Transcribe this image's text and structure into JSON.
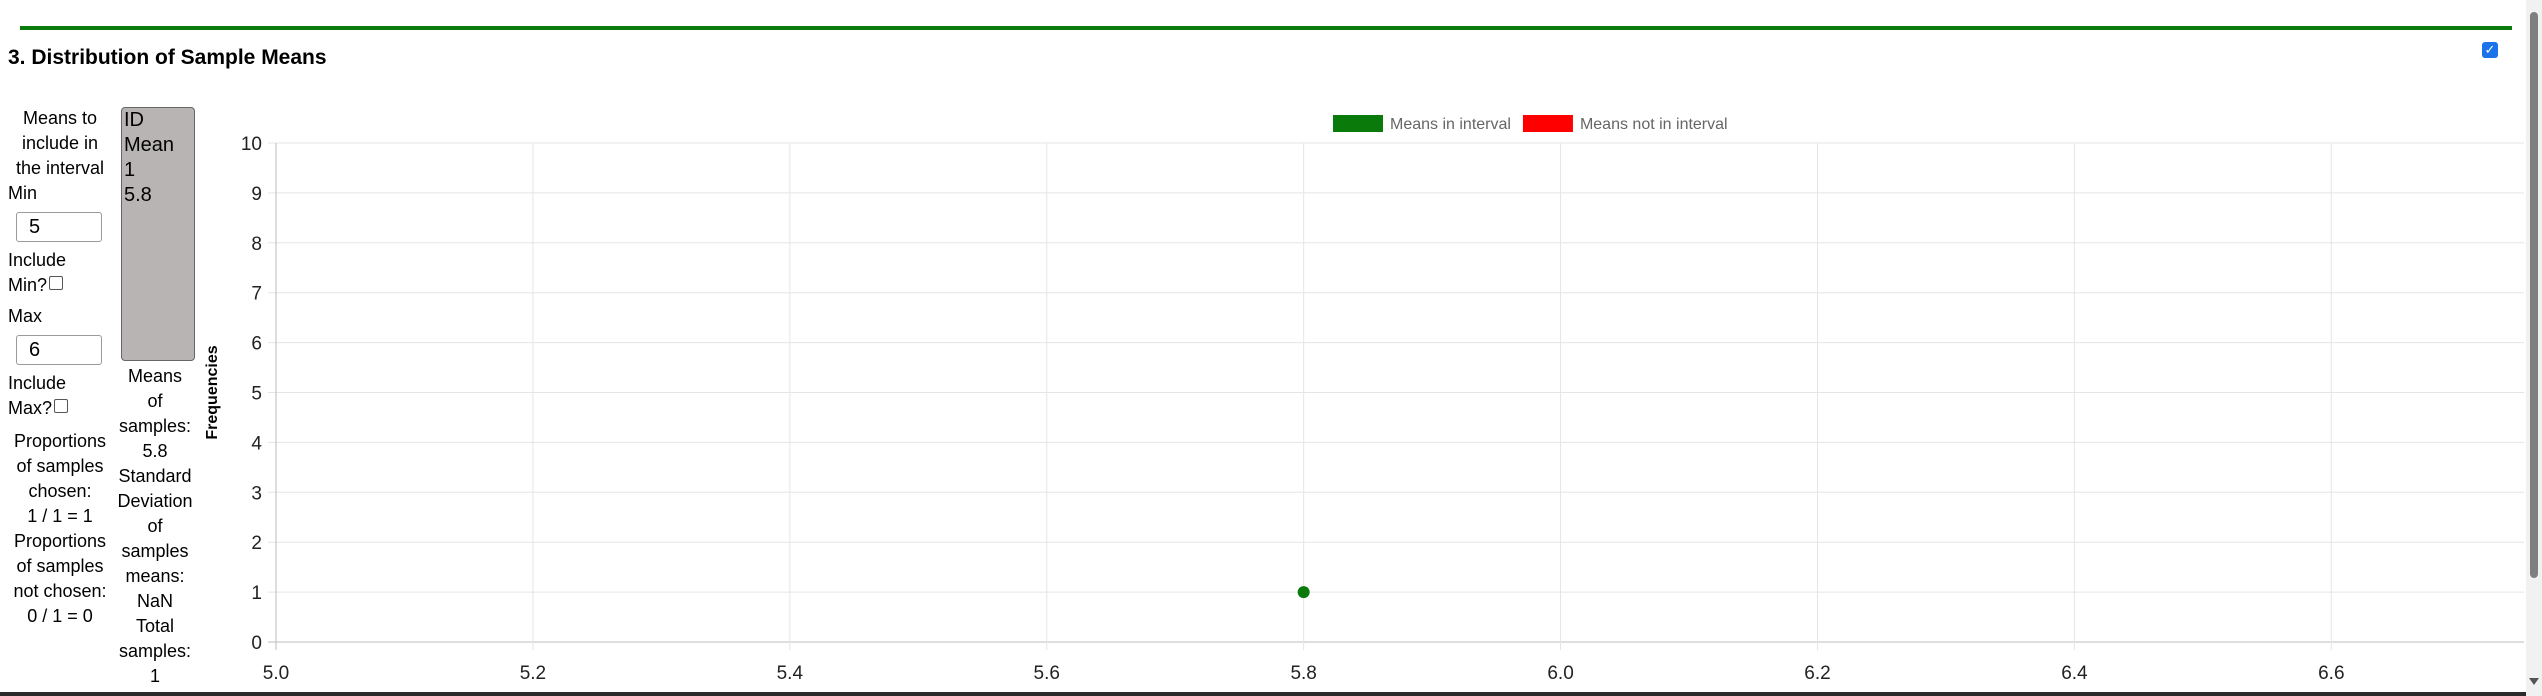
{
  "section": {
    "title": "3. Distribution of Sample Means",
    "toggle_checked": true
  },
  "left_panel": {
    "means_label": [
      "Means to",
      "include in",
      "the interval"
    ],
    "min_label": "Min",
    "min_value": "5",
    "include_min_label": [
      "Include",
      "Min?"
    ],
    "max_label": "Max",
    "max_value": "6",
    "include_max_label": [
      "Include",
      "Max?"
    ],
    "prop_chosen_label": [
      "Proportions",
      "of samples",
      "chosen:"
    ],
    "prop_chosen_value": "1 / 1 = 1",
    "prop_not_chosen_label": [
      "Proportions",
      "of samples",
      "not chosen:"
    ],
    "prop_not_chosen_value": "0 / 1 = 0"
  },
  "list_box": {
    "headers": [
      "ID",
      "Mean"
    ],
    "rows": [
      [
        "1",
        "5.8"
      ]
    ]
  },
  "stats": {
    "means_label": [
      "Means",
      "of",
      "samples:"
    ],
    "means_value": "5.8",
    "sd_label": [
      "Standard",
      "Deviation",
      "of",
      "samples",
      "means:"
    ],
    "sd_value": "NaN",
    "total_label": [
      "Total",
      "samples:"
    ],
    "total_value": "1"
  },
  "chart_data": {
    "type": "scatter",
    "ylabel": "Frequencies",
    "xlabel": "",
    "xlim": [
      5.0,
      6.75
    ],
    "ylim": [
      0,
      10
    ],
    "x_ticks": [
      "5.0",
      "5.2",
      "5.4",
      "5.6",
      "5.8",
      "6.0",
      "6.2",
      "6.4",
      "6.6"
    ],
    "y_ticks": [
      "0",
      "1",
      "2",
      "3",
      "4",
      "5",
      "6",
      "7",
      "8",
      "9",
      "10"
    ],
    "grid": true,
    "legend_position": "top-center",
    "legend": [
      {
        "name": "Means in interval",
        "color": "#0a7a0a"
      },
      {
        "name": "Means not in interval",
        "color": "#ff0000"
      }
    ],
    "series": [
      {
        "name": "Means in interval",
        "color": "#0a7a0a",
        "points": [
          {
            "x": 5.8,
            "y": 1
          }
        ]
      },
      {
        "name": "Means not in interval",
        "color": "#ff0000",
        "points": []
      }
    ]
  }
}
